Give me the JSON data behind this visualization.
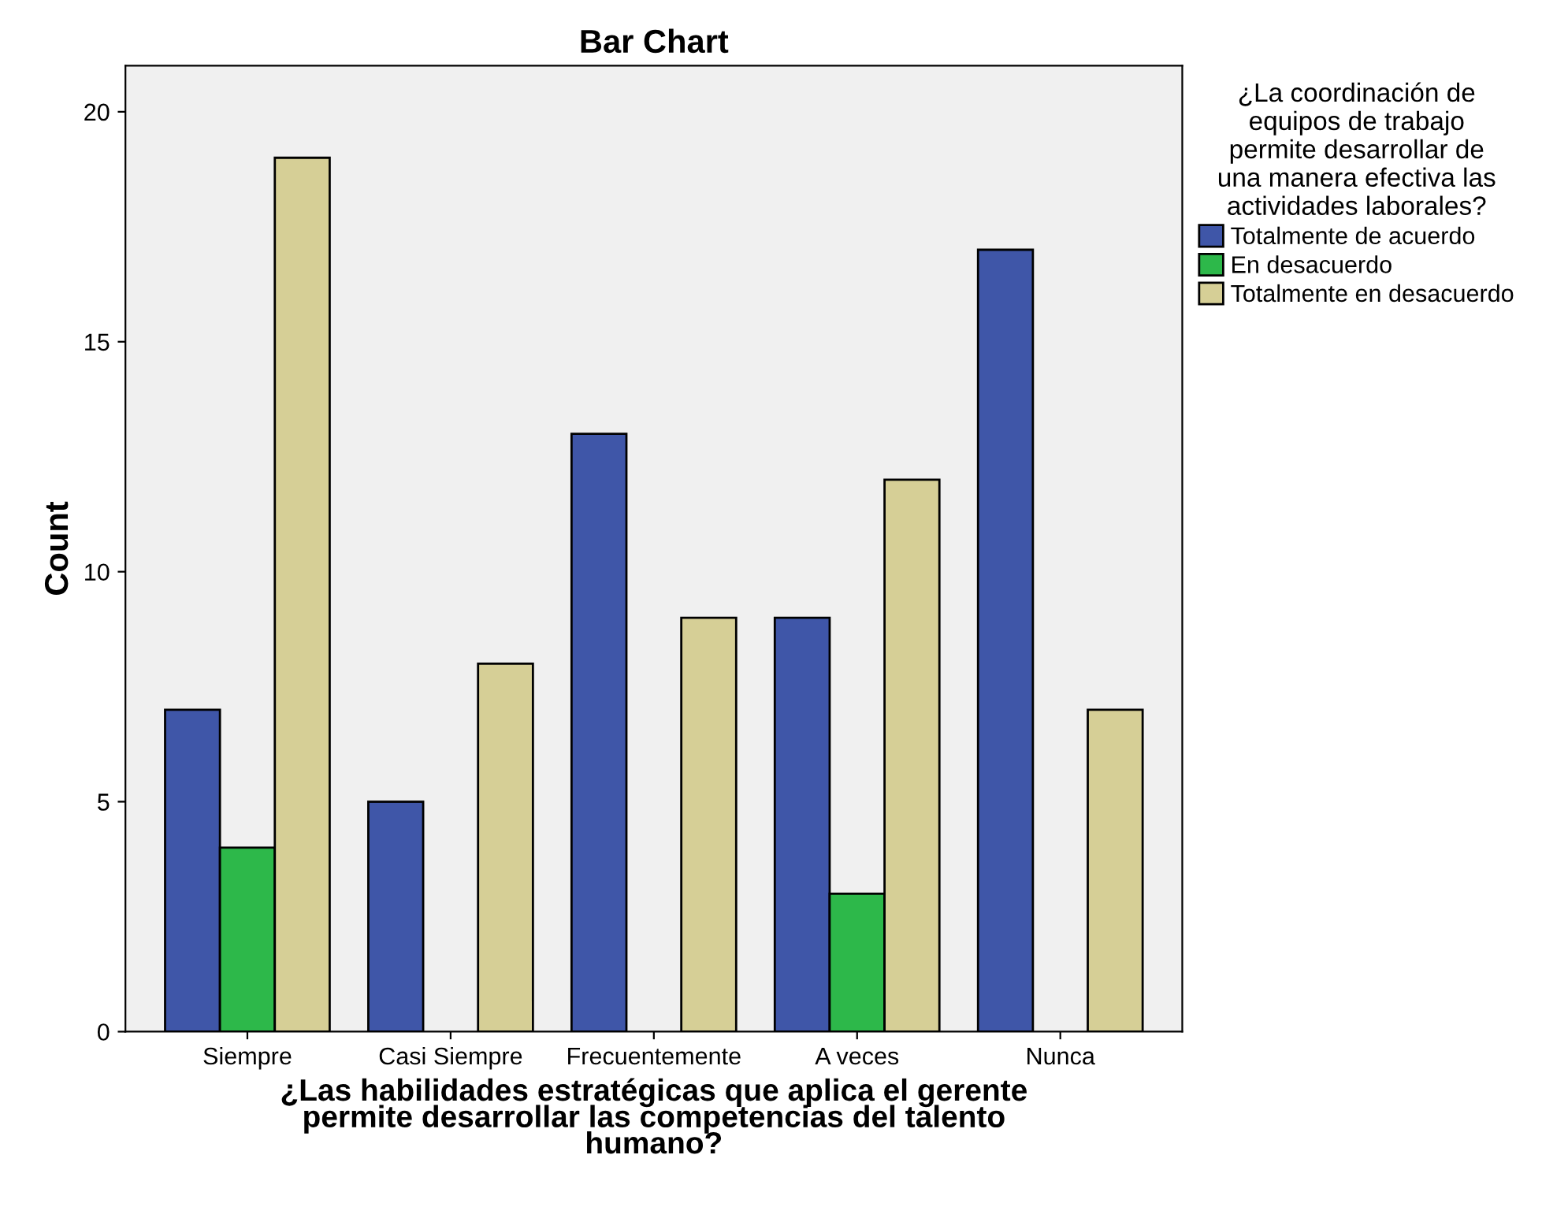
{
  "chart_data": {
    "type": "bar",
    "title": "Bar Chart",
    "xlabel": "¿Las habilidades estratégicas que aplica el gerente\npermite desarrollar las competencias del talento\nhumano?",
    "ylabel": "Count",
    "legend_title": "¿La coordinación de\nequipos de trabajo\npermite desarrollar de\nuna manera efectiva las\nactividades laborales?",
    "categories": [
      "Siempre",
      "Casi Siempre",
      "Frecuentemente",
      "A veces",
      "Nunca"
    ],
    "series": [
      {
        "name": "Totalmente de acuerdo",
        "color": "#3f56a8",
        "values": [
          7,
          5,
          13,
          9,
          17
        ]
      },
      {
        "name": "En desacuerdo",
        "color": "#2db84a",
        "values": [
          4,
          null,
          null,
          3,
          null
        ]
      },
      {
        "name": "Totalmente en desacuerdo",
        "color": "#d6cf96",
        "values": [
          19,
          8,
          9,
          12,
          7
        ]
      }
    ],
    "ylim": [
      0,
      21
    ],
    "yticks": [
      0,
      5,
      10,
      15,
      20
    ],
    "grid": false,
    "legend": "right"
  }
}
